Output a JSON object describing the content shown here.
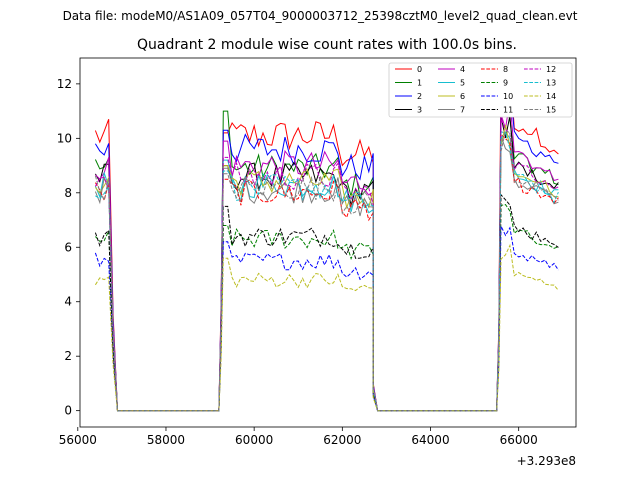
{
  "chart_data": {
    "type": "line",
    "suptitle": "Data file: modeM0/AS1A09_057T04_9000003712_25398cztM0_level2_quad_clean.evt",
    "title": "Quadrant 2 module wise count rates with 100.0s bins.",
    "xlabel": "",
    "ylabel": "",
    "x_offset_label": "+3.293e8",
    "xlim": [
      56050,
      67300
    ],
    "ylim": [
      -0.6,
      12.95
    ],
    "xticks": [
      56000,
      58000,
      60000,
      62000,
      64000,
      66000
    ],
    "xtick_labels": [
      "56000",
      "58000",
      "60000",
      "62000",
      "64000",
      "66000"
    ],
    "yticks": [
      0,
      2,
      4,
      6,
      8,
      10,
      12
    ],
    "ytick_labels": [
      "0",
      "2",
      "4",
      "6",
      "8",
      "10",
      "12"
    ],
    "legend_position": "top-right",
    "segments": [
      {
        "start": 56400,
        "end": 56800
      },
      {
        "start": 59300,
        "end": 62650
      },
      {
        "start": 65600,
        "end": 66900
      }
    ],
    "series": [
      {
        "name": "0",
        "color": "#ff0000",
        "dash": "solid",
        "level": 10.1,
        "peak_edge": 10.2
      },
      {
        "name": "1",
        "color": "#008000",
        "dash": "solid",
        "level": 8.9,
        "peak_edge": 11.0
      },
      {
        "name": "2",
        "color": "#0000ff",
        "dash": "solid",
        "level": 9.6,
        "peak_edge": 10.3
      },
      {
        "name": "3",
        "color": "#000000",
        "dash": "solid",
        "level": 8.6,
        "peak_edge": 9.0
      },
      {
        "name": "4",
        "color": "#bf00bf",
        "dash": "solid",
        "level": 9.0,
        "peak_edge": 9.9
      },
      {
        "name": "5",
        "color": "#17becf",
        "dash": "solid",
        "level": 8.3,
        "peak_edge": 9.2
      },
      {
        "name": "6",
        "color": "#bcbd22",
        "dash": "solid",
        "level": 8.4,
        "peak_edge": 9.0
      },
      {
        "name": "7",
        "color": "#7f7f7f",
        "dash": "solid",
        "level": 8.1,
        "peak_edge": 8.9
      },
      {
        "name": "8",
        "color": "#ff0000",
        "dash": "dashed",
        "level": 8.0,
        "peak_edge": 8.5
      },
      {
        "name": "9",
        "color": "#008000",
        "dash": "dashed",
        "level": 6.3,
        "peak_edge": 6.8
      },
      {
        "name": "10",
        "color": "#0000ff",
        "dash": "dashed",
        "level": 5.5,
        "peak_edge": 6.2
      },
      {
        "name": "11",
        "color": "#000000",
        "dash": "dashed",
        "level": 6.4,
        "peak_edge": 7.5
      },
      {
        "name": "12",
        "color": "#bf00bf",
        "dash": "dashed",
        "level": 8.6,
        "peak_edge": 9.3
      },
      {
        "name": "13",
        "color": "#17becf",
        "dash": "dashed",
        "level": 8.2,
        "peak_edge": 8.8
      },
      {
        "name": "14",
        "color": "#bcbd22",
        "dash": "dashed",
        "level": 4.8,
        "peak_edge": 5.6
      },
      {
        "name": "15",
        "color": "#7f7f7f",
        "dash": "dashed",
        "level": 8.2,
        "peak_edge": 8.7
      }
    ]
  }
}
